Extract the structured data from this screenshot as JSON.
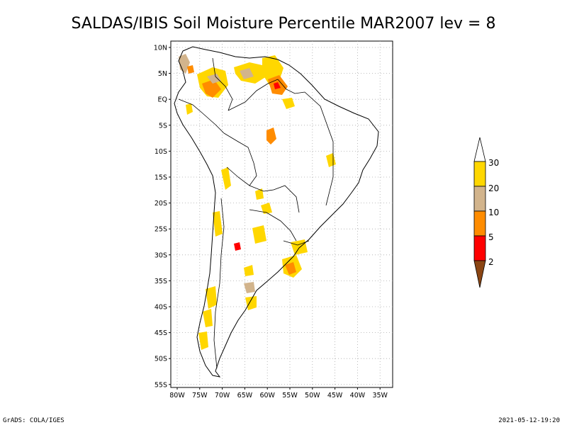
{
  "title": "SALDAS/IBIS Soil Moisture Percentile MAR2007 lev = 8",
  "map": {
    "lat_ticks": [
      "10N",
      "5N",
      "EQ",
      "5S",
      "10S",
      "15S",
      "20S",
      "25S",
      "30S",
      "35S",
      "40S",
      "45S",
      "50S",
      "55S"
    ],
    "lon_ticks": [
      "80W",
      "75W",
      "70W",
      "65W",
      "60W",
      "55W",
      "50W",
      "45W",
      "40W",
      "35W"
    ],
    "grid": "dotted"
  },
  "colorbar": {
    "labels": [
      "2",
      "5",
      "10",
      "20",
      "30"
    ],
    "colors": {
      "below_2": "#8B4513",
      "2_5": "#FF0000",
      "5_10": "#FF8C00",
      "10_20": "#D2B48C",
      "20_30": "#FFD700",
      "above_30": "#FFFFFF"
    }
  },
  "footer": {
    "left": "GrADS: COLA/IGES",
    "right": "2021-05-12-19:20"
  }
}
